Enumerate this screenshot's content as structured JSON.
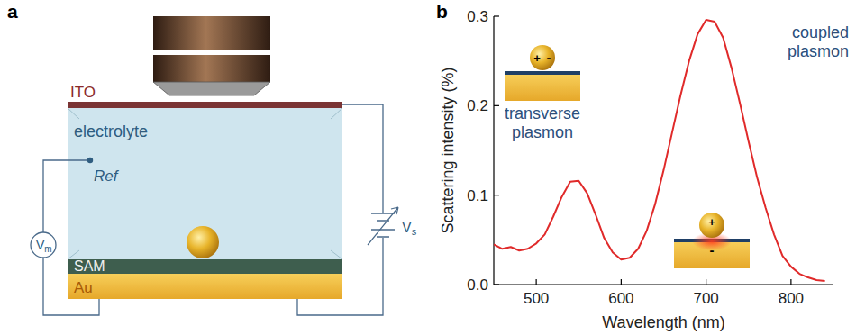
{
  "diagram": {
    "panel_label": "a",
    "labels": {
      "ito": "ITO",
      "electrolyte": "electrolyte",
      "ref": "Ref",
      "sam": "SAM",
      "au": "Au",
      "vm": {
        "main": "V",
        "sub": "m"
      },
      "vs": {
        "main": "V",
        "sub": "s"
      }
    }
  },
  "chart_data": {
    "type": "line",
    "panel_label": "b",
    "x_label": "Wavelength (nm)",
    "y_label": "Scattering intensity (%)",
    "x": [
      450,
      460,
      470,
      480,
      490,
      500,
      510,
      520,
      530,
      540,
      550,
      560,
      570,
      580,
      590,
      600,
      610,
      620,
      630,
      640,
      650,
      660,
      670,
      680,
      690,
      700,
      710,
      720,
      730,
      740,
      750,
      760,
      770,
      780,
      790,
      800,
      810,
      820,
      830,
      840
    ],
    "values": [
      0.045,
      0.04,
      0.042,
      0.038,
      0.04,
      0.046,
      0.056,
      0.076,
      0.098,
      0.115,
      0.116,
      0.102,
      0.078,
      0.052,
      0.036,
      0.028,
      0.03,
      0.04,
      0.06,
      0.09,
      0.128,
      0.17,
      0.212,
      0.25,
      0.28,
      0.296,
      0.294,
      0.276,
      0.242,
      0.202,
      0.16,
      0.12,
      0.086,
      0.056,
      0.032,
      0.02,
      0.012,
      0.008,
      0.005,
      0.004
    ],
    "color": "#e02a2a",
    "xlim": [
      450,
      850
    ],
    "xticks": [
      500,
      600,
      700,
      800
    ],
    "ylim": [
      0,
      0.3
    ],
    "yticks": [
      {
        "value": 0,
        "label": "0.0"
      },
      0.1,
      0.2,
      0.3
    ],
    "annotations": [
      {
        "text": "transverse plasmon"
      },
      {
        "text": "coupled plasmon"
      }
    ],
    "charge_labels": {
      "plus": "+",
      "minus": "-"
    }
  }
}
